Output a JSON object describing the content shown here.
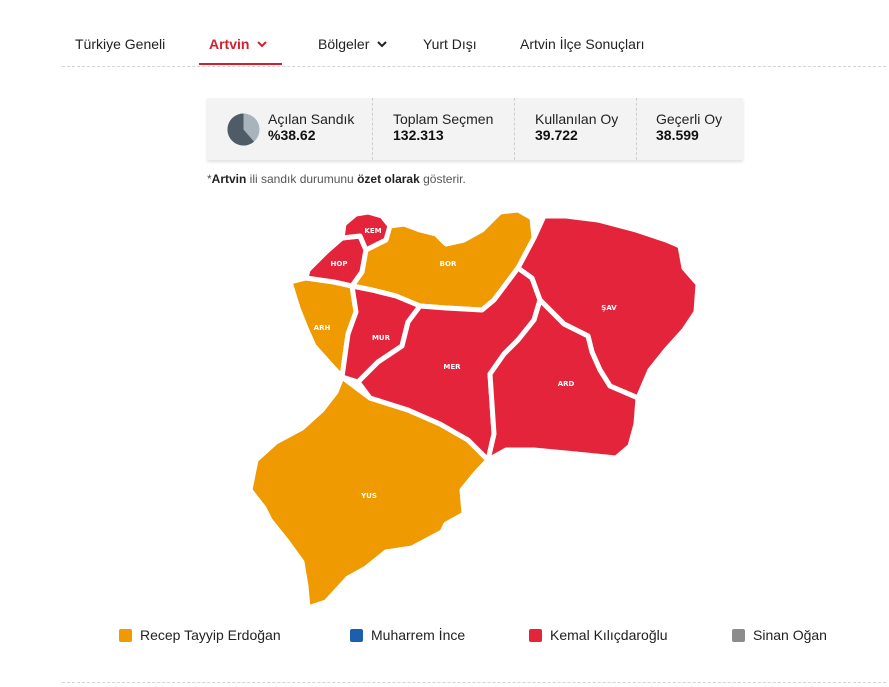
{
  "nav": {
    "tabs": [
      {
        "label": "Türkiye Geneli"
      },
      {
        "label": "Artvin"
      },
      {
        "label": "Bölgeler"
      },
      {
        "label": "Yurt Dışı"
      },
      {
        "label": "Artvin İlçe Sonuçları"
      }
    ],
    "active_tab": "Artvin"
  },
  "stats": {
    "opened_boxes": {
      "label": "Açılan Sandık",
      "value": "%38.62",
      "fraction": 0.3862
    },
    "total_voters": {
      "label": "Toplam Seçmen",
      "value": "132.313"
    },
    "votes_used": {
      "label": "Kullanılan Oy",
      "value": "39.722"
    },
    "valid_votes": {
      "label": "Geçerli Oy",
      "value": "38.599"
    }
  },
  "note": {
    "prefix": "*",
    "province": "Artvin",
    "text1": " ili sandık durumunu ",
    "emphasis": "özet olarak",
    "text2": " gösterir."
  },
  "colors": {
    "accent": "#d4202e",
    "erdogan": "#ee9a00",
    "ince": "#1c5fae",
    "kilicdaroglu": "#e3243a",
    "ogan": "#8c8c8c",
    "pie_fill": "#4f5b66",
    "pie_bg": "#a9b3bc"
  },
  "map": {
    "districts": [
      {
        "code": "KEM",
        "winner": "kilicdaroglu"
      },
      {
        "code": "HOP",
        "winner": "kilicdaroglu"
      },
      {
        "code": "BOR",
        "winner": "erdogan"
      },
      {
        "code": "ARH",
        "winner": "erdogan"
      },
      {
        "code": "MUR",
        "winner": "kilicdaroglu"
      },
      {
        "code": "MER",
        "winner": "kilicdaroglu"
      },
      {
        "code": "ŞAV",
        "winner": "kilicdaroglu"
      },
      {
        "code": "ARD",
        "winner": "kilicdaroglu"
      },
      {
        "code": "YUS",
        "winner": "erdogan"
      }
    ]
  },
  "legend": [
    {
      "key": "erdogan",
      "name": "Recep Tayyip Erdoğan"
    },
    {
      "key": "ince",
      "name": "Muharrem İnce"
    },
    {
      "key": "kilicdaroglu",
      "name": "Kemal Kılıçdaroğlu"
    },
    {
      "key": "ogan",
      "name": "Sinan Oğan"
    }
  ]
}
